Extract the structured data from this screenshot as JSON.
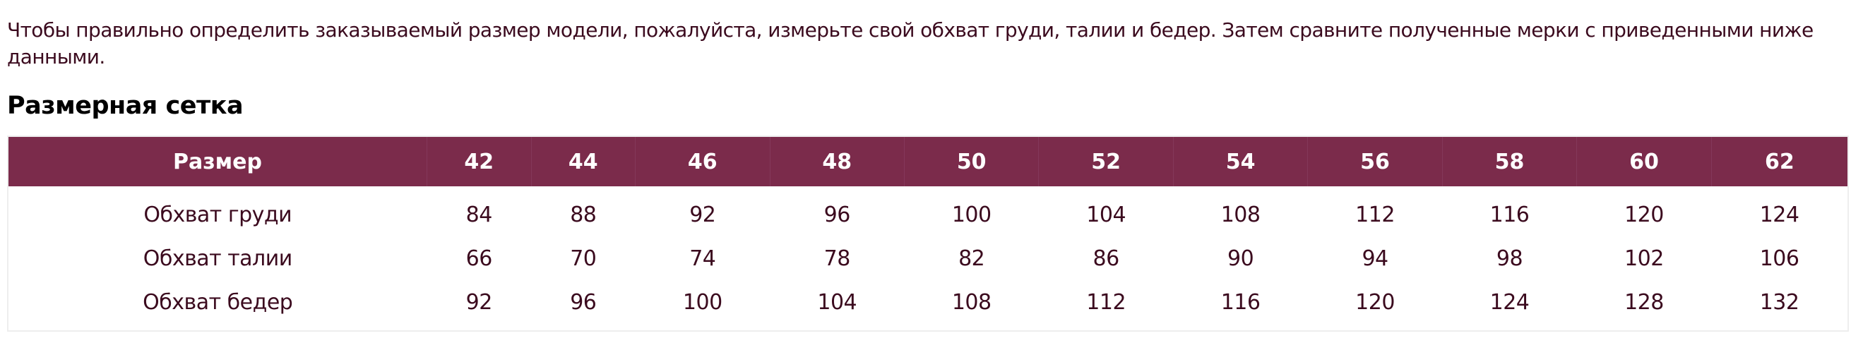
{
  "intro_text": "Чтобы правильно определить заказываемый размер модели, пожалуйста, измерьте свой обхват груди, талии и бедер. Затем сравните полученные мерки с приведенными ниже данными.",
  "heading": "Размерная сетка",
  "colors": {
    "header_bg": "#7b2b4b",
    "text": "#3b0a1e"
  },
  "table": {
    "header": [
      "Размер",
      "42",
      "44",
      "46",
      "48",
      "50",
      "52",
      "54",
      "56",
      "58",
      "60",
      "62"
    ],
    "rows": [
      [
        "Обхват груди",
        "84",
        "88",
        "92",
        "96",
        "100",
        "104",
        "108",
        "112",
        "116",
        "120",
        "124"
      ],
      [
        "Обхват талии",
        "66",
        "70",
        "74",
        "78",
        "82",
        "86",
        "90",
        "94",
        "98",
        "102",
        "106"
      ],
      [
        "Обхват бедер",
        "92",
        "96",
        "100",
        "104",
        "108",
        "112",
        "116",
        "120",
        "124",
        "128",
        "132"
      ]
    ]
  }
}
